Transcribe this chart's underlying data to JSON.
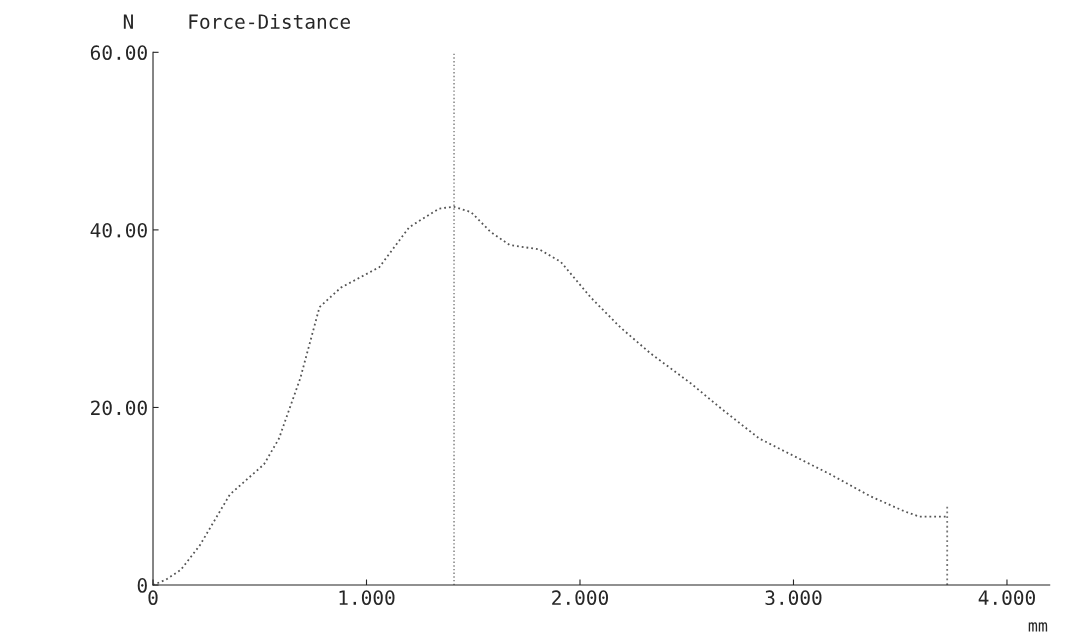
{
  "chart_data": {
    "type": "line",
    "title": "Force-Distance",
    "ylabel": "N",
    "xlabel": "mm",
    "series": [
      {
        "color": "#555555",
        "line_style": "dotted",
        "x": [
          0,
          0.06,
          0.13,
          0.22,
          0.36,
          0.52,
          0.59,
          0.69,
          0.78,
          0.88,
          1.06,
          1.2,
          1.34,
          1.41,
          1.49,
          1.58,
          1.67,
          1.81,
          1.91,
          2.05,
          2.19,
          2.33,
          2.52,
          2.66,
          2.84,
          2.98,
          3.17,
          3.36,
          3.52,
          3.59,
          3.72
        ],
        "values": [
          0,
          0.6,
          1.7,
          4.5,
          10.2,
          13.6,
          16.5,
          23.3,
          31.3,
          33.5,
          35.8,
          40.3,
          42.4,
          42.6,
          42.0,
          39.8,
          38.3,
          37.8,
          36.4,
          32.4,
          29.0,
          26.1,
          22.7,
          19.9,
          16.5,
          14.8,
          12.5,
          10.0,
          8.3,
          7.7,
          7.7
        ]
      },
      {
        "color": "#777777",
        "line_style": "dotted",
        "x": [
          3.72,
          3.72
        ],
        "values": [
          0,
          8.9
        ]
      }
    ],
    "ref_lines": [
      {
        "axis": "x",
        "value": 1.41,
        "color": "#777777",
        "line_style": "dotted"
      }
    ],
    "xlim": [
      0,
      4.2
    ],
    "xticks": [
      {
        "value": 0,
        "label": "0"
      },
      {
        "value": 1,
        "label": "1.000"
      },
      {
        "value": 2,
        "label": "2.000"
      },
      {
        "value": 3,
        "label": "3.000"
      },
      {
        "value": 4,
        "label": "4.000"
      }
    ],
    "ylim": [
      0,
      60
    ],
    "yticks": [
      {
        "value": 0,
        "label": "0"
      },
      {
        "value": 20,
        "label": "20.00"
      },
      {
        "value": 40,
        "label": "40.00"
      },
      {
        "value": 60,
        "label": "60.00"
      }
    ],
    "grid": false,
    "legend": false
  }
}
